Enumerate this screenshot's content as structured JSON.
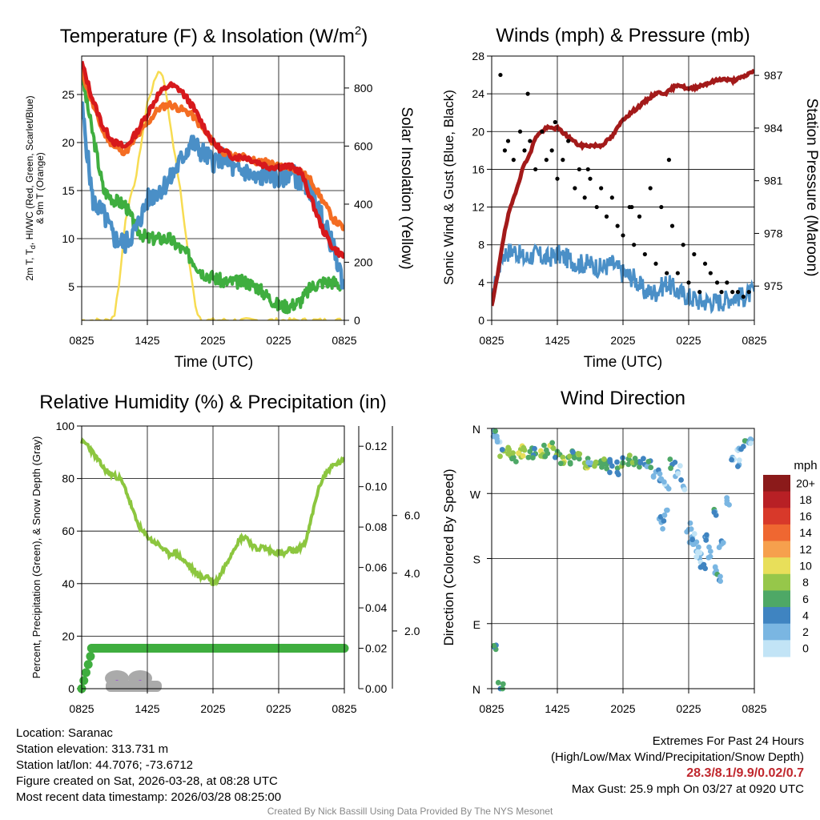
{
  "chart_data": [
    {
      "type": "line",
      "title": "Temperature (F) & Insolation (W/m²)",
      "title_main": "Temperature (F) & Insolation (W/m",
      "title_sup": "2",
      "title_end": ")",
      "xlabel": "Time (UTC)",
      "ylabel": "2m T, Td, HI/WC (Red, Green, Scarlet/Blue) & 9m T (Orange)",
      "ylabel_line1": "2m T, T",
      "ylabel_sub": "d",
      "ylabel_line1_end": ", HI/WC (Red, Green, Scarlet/Blue)",
      "ylabel_line2": "& 9m T (Orange)",
      "y2label": "Solar Insolation (Yellow)",
      "ylim": [
        1.5,
        29
      ],
      "y2lim": [
        0,
        910
      ],
      "xlim": [
        0,
        24
      ],
      "x_ticks": [
        "0825",
        "1425",
        "2025",
        "0225",
        "0825"
      ],
      "y_ticks": [
        5,
        10,
        15,
        20,
        25
      ],
      "y2_ticks": [
        0,
        200,
        400,
        600,
        800
      ],
      "series": [
        {
          "name": "2m T",
          "color": "#d7191c",
          "x": [
            0,
            1,
            2,
            3,
            4,
            5,
            6,
            7,
            8,
            9,
            10,
            11,
            12,
            13,
            14,
            15,
            16,
            17,
            18,
            19,
            20,
            21,
            22,
            23,
            24
          ],
          "values": [
            28.3,
            24.5,
            21.5,
            20,
            19.5,
            21,
            23,
            25,
            26,
            25.5,
            24,
            22,
            20,
            19,
            18.5,
            18.5,
            18,
            17.5,
            17.5,
            17.5,
            17,
            14,
            11,
            9,
            8.1
          ]
        },
        {
          "name": "9m T",
          "color": "#f46d23",
          "x": [
            0,
            1,
            2,
            3,
            4,
            5,
            6,
            7,
            8,
            9,
            10,
            11,
            12,
            13,
            14,
            15,
            16,
            17,
            18,
            19,
            20,
            21,
            22,
            23,
            24
          ],
          "values": [
            27.5,
            24,
            21,
            19.5,
            19,
            20.5,
            22,
            23.5,
            24,
            23.5,
            23,
            21.5,
            20,
            19,
            18.5,
            18.5,
            18,
            18,
            17.5,
            17.5,
            17,
            16,
            14,
            12,
            11
          ]
        },
        {
          "name": "Td",
          "color": "#3fae3f",
          "x": [
            0,
            1,
            2,
            3,
            4,
            5,
            6,
            7,
            8,
            9,
            10,
            11,
            12,
            13,
            14,
            15,
            16,
            17,
            18,
            19,
            20,
            21,
            22,
            23,
            24
          ],
          "values": [
            27,
            21,
            15,
            14,
            13.5,
            11,
            10,
            10,
            10,
            9,
            8,
            6.5,
            6,
            5.5,
            5.5,
            5.5,
            5,
            4,
            3,
            3,
            3.5,
            5,
            5.5,
            5.5,
            5
          ]
        },
        {
          "name": "HI/WC",
          "color": "#4a8fc7",
          "x": [
            0,
            1,
            2,
            3,
            4,
            5,
            6,
            7,
            8,
            9,
            10,
            11,
            12,
            13,
            14,
            15,
            16,
            17,
            18,
            19,
            20,
            21,
            22,
            23,
            24
          ],
          "values": [
            24,
            14,
            12.5,
            10,
            9.5,
            11,
            14,
            15,
            16,
            18,
            20,
            19,
            18,
            18.5,
            17,
            17,
            16,
            17,
            16,
            17,
            16,
            15,
            12,
            9,
            5
          ]
        },
        {
          "name": "Solar Insolation",
          "axis": "y2",
          "color": "#f7dc52",
          "x": [
            0,
            2.5,
            3,
            3.5,
            4,
            5,
            6,
            7,
            7.5,
            8,
            9,
            10,
            10.5,
            11,
            12,
            24
          ],
          "values": [
            0,
            0,
            20,
            150,
            350,
            500,
            750,
            860,
            840,
            700,
            450,
            150,
            30,
            0,
            0,
            0
          ]
        }
      ]
    },
    {
      "type": "scatter",
      "title": "Winds (mph) & Pressure (mb)",
      "xlabel": "Time (UTC)",
      "ylabel": "Sonic Wind & Gust (Blue, Black)",
      "y2label": "Station Pressure (Maroon)",
      "ylim": [
        0,
        28
      ],
      "y2lim": [
        973.05,
        988.1
      ],
      "xlim": [
        0,
        24
      ],
      "x_ticks": [
        "0825",
        "1425",
        "2025",
        "0225",
        "0825"
      ],
      "y_ticks": [
        0,
        4,
        8,
        12,
        16,
        20,
        24,
        28
      ],
      "y2_ticks": [
        975,
        978,
        981,
        984,
        987
      ],
      "series": [
        {
          "name": "Sonic Wind",
          "color": "#4a8fc7",
          "x": [
            0,
            0.5,
            1,
            2,
            3,
            4,
            5,
            6,
            7,
            8,
            9,
            10,
            11,
            12,
            13,
            14,
            15,
            16,
            17,
            18,
            19,
            20,
            21,
            22,
            23,
            24
          ],
          "values": [
            2,
            5,
            7,
            7.5,
            6.5,
            7,
            6.5,
            7,
            6.5,
            6,
            6,
            5.5,
            6,
            5,
            4.5,
            3,
            3,
            4,
            3,
            2.5,
            2,
            2,
            2,
            2.5,
            2.5,
            3
          ]
        },
        {
          "name": "Gust",
          "color": "#000000",
          "x": [
            0.8,
            1.5,
            2,
            2.6,
            3,
            3.5,
            4,
            4.6,
            5,
            5.5,
            6,
            6.5,
            7,
            7.6,
            8,
            8.5,
            9,
            9.6,
            10,
            10.5,
            11,
            11.5,
            12,
            12.6,
            13,
            13.5,
            14,
            14.5,
            15,
            15.5,
            16,
            16.5,
            17,
            17.5,
            18,
            18.5,
            19,
            19.5,
            20,
            20.6,
            21,
            21.5,
            22,
            22.5,
            23,
            23.5,
            1.2,
            3.3,
            5.8,
            8.8,
            16.2,
            12.8
          ],
          "values": [
            26,
            19,
            17,
            20,
            18,
            19,
            16,
            20,
            17,
            18,
            15,
            17,
            19,
            14,
            16,
            13,
            15,
            12,
            14,
            11,
            13,
            10,
            9,
            12,
            8,
            11,
            7,
            14,
            6,
            12,
            5,
            10,
            5,
            8,
            4,
            7,
            3,
            6,
            5,
            4,
            3,
            4,
            3,
            3,
            2.5,
            3,
            18,
            24,
            21,
            16,
            17,
            12
          ]
        },
        {
          "name": "Station Pressure",
          "axis": "y2",
          "color": "#a31a1a",
          "x": [
            0,
            0.5,
            1,
            1.5,
            2,
            2.5,
            3,
            3.5,
            4,
            5,
            6,
            7,
            8,
            9,
            10,
            11,
            12,
            13,
            14,
            15,
            16,
            17,
            18,
            19,
            20,
            21,
            22,
            23,
            24
          ],
          "values": [
            973.8,
            975.5,
            977.5,
            979,
            980,
            981,
            982,
            982.5,
            983.5,
            984,
            984,
            983.5,
            983,
            983,
            983,
            983.5,
            984.5,
            985,
            985.5,
            986,
            986,
            986.5,
            986.2,
            986.4,
            986.6,
            986.8,
            986.7,
            986.9,
            987.3
          ]
        }
      ]
    },
    {
      "type": "line",
      "title": "Relative Humidity (%) & Precipitation (in)",
      "ylabel": "Percent, Precipitation (Green), & Snow Depth (Gray)",
      "ylim": [
        0,
        100
      ],
      "y2lim": [
        0,
        0.13
      ],
      "y3lim": [
        0,
        9.1
      ],
      "xlim": [
        0,
        24
      ],
      "x_ticks": [
        "0825",
        "1425",
        "2025",
        "0225",
        "0825"
      ],
      "y_ticks": [
        0,
        20,
        40,
        60,
        80,
        100
      ],
      "y2_ticks": [
        "0.00",
        "0.02",
        "0.04",
        "0.06",
        "0.08",
        "0.10",
        "0.12"
      ],
      "y3_ticks": [
        "2.0",
        "4.0",
        "6.0"
      ],
      "series": [
        {
          "name": "Relative Humidity",
          "color": "#8cc63f",
          "x": [
            0,
            0.5,
            1,
            1.5,
            2,
            2.5,
            3,
            3.5,
            4,
            4.5,
            5,
            5.5,
            6,
            6.5,
            7,
            7.5,
            8,
            8.5,
            9,
            9.5,
            10,
            10.5,
            11,
            11.5,
            12,
            12.5,
            13,
            13.5,
            14,
            14.5,
            15,
            15.5,
            16,
            16.5,
            17,
            17.5,
            18,
            18.5,
            19,
            19.5,
            20,
            20.5,
            21,
            21.5,
            22,
            22.5,
            23,
            23.5,
            24
          ],
          "values": [
            94,
            93,
            90,
            87,
            84,
            82,
            81,
            80,
            76,
            70,
            64,
            60,
            58,
            56,
            55,
            53,
            51,
            52,
            50,
            48,
            46,
            44,
            42,
            43,
            40,
            42,
            46,
            50,
            54,
            57,
            58,
            55,
            53,
            54,
            53,
            52,
            52,
            51,
            53,
            52,
            54,
            56,
            65,
            74,
            80,
            83,
            85,
            86,
            87
          ]
        },
        {
          "name": "Precipitation",
          "axis": "y2",
          "color": "#3fae3f",
          "x": [
            0,
            0.2,
            0.4,
            0.6,
            0.8,
            1,
            24
          ],
          "values": [
            0,
            0.004,
            0.008,
            0.012,
            0.016,
            0.02,
            0.02
          ]
        },
        {
          "name": "Snow Depth",
          "axis": "y3",
          "color": "#aaaaaa",
          "x": [
            2.8,
            4,
            5,
            6,
            7,
            7.2
          ],
          "values": [
            0.3,
            0.7,
            0.3,
            0.7,
            0.3,
            0.1
          ]
        }
      ]
    },
    {
      "type": "scatter",
      "title": "Wind Direction",
      "ylabel": "Direction (Colored By Speed)",
      "xlim": [
        0,
        24
      ],
      "x_ticks": [
        "0825",
        "1425",
        "2025",
        "0225",
        "0825"
      ],
      "y_ticks": [
        "N",
        "E",
        "S",
        "W",
        "N"
      ],
      "colorbar": {
        "title": "mph",
        "labels": [
          "20+",
          "18",
          "16",
          "14",
          "12",
          "10",
          "8",
          "6",
          "4",
          "2",
          "0"
        ],
        "colors": [
          "#8b1a1a",
          "#b82025",
          "#d8392a",
          "#ef6731",
          "#f6a04d",
          "#e8df5a",
          "#96c74a",
          "#4ea866",
          "#3f84c1",
          "#7ab6e2",
          "#c2e4f6"
        ]
      },
      "series": [
        {
          "name": "Direction",
          "x": [
            0.2,
            0.5,
            1,
            1.5,
            2,
            2.5,
            3,
            3.5,
            4,
            4.5,
            5,
            5.5,
            6,
            6.5,
            7,
            7.5,
            8,
            8.5,
            9,
            9.5,
            10,
            10.5,
            11,
            11.5,
            12,
            12.5,
            13,
            13.5,
            14,
            14.5,
            15,
            15.5,
            16,
            16.5,
            17,
            17.5,
            18,
            18.5,
            19,
            19.5,
            20,
            20.5,
            21,
            21.5,
            22,
            22.5,
            23,
            23.5,
            0.4,
            0.8,
            15.5,
            15.8,
            18.3,
            18.7,
            19.3,
            20.4,
            20.8,
            22.6
          ],
          "values": [
            355,
            345,
            330,
            325,
            320,
            325,
            330,
            328,
            325,
            322,
            330,
            335,
            328,
            320,
            320,
            325,
            318,
            312,
            310,
            312,
            315,
            310,
            308,
            305,
            312,
            318,
            310,
            314,
            310,
            315,
            300,
            290,
            280,
            310,
            300,
            280,
            220,
            200,
            180,
            210,
            190,
            240,
            200,
            260,
            320,
            330,
            335,
            340,
            60,
            0,
            230,
            240,
            210,
            190,
            170,
            160,
            150,
            310
          ],
          "speeds": [
            4,
            2,
            6,
            8,
            6,
            8,
            7,
            6,
            6,
            8,
            6,
            7,
            5,
            8,
            6,
            6,
            5,
            7,
            4,
            8,
            6,
            5,
            4,
            6,
            6,
            5,
            6,
            4,
            4,
            3,
            2,
            2,
            1,
            3,
            2,
            2,
            2,
            1,
            2,
            3,
            2,
            3,
            2,
            2,
            1,
            2,
            3,
            2,
            3,
            4,
            1,
            1,
            2,
            2,
            3,
            2,
            3,
            2
          ]
        }
      ]
    }
  ],
  "info": {
    "location": "Location: Saranac",
    "elevation": "Station elevation: 313.731 m",
    "latlon": "Station lat/lon: 44.7076; -73.6712",
    "created": "Figure created on Sat, 2026-03-28, at 08:28 UTC",
    "recent": "Most recent data timestamp: 2026/03/28 08:25:00"
  },
  "extremes": {
    "title": "Extremes For Past 24 Hours",
    "subtitle": "(High/Low/Max Wind/Precipitation/Snow Depth)",
    "values": "28.3/8.1/9.9/0.02/0.7",
    "gust": "Max Gust: 25.9 mph On 03/27 at 0920 UTC"
  },
  "credit": "Created By Nick Bassill Using Data Provided By The NYS Mesonet"
}
